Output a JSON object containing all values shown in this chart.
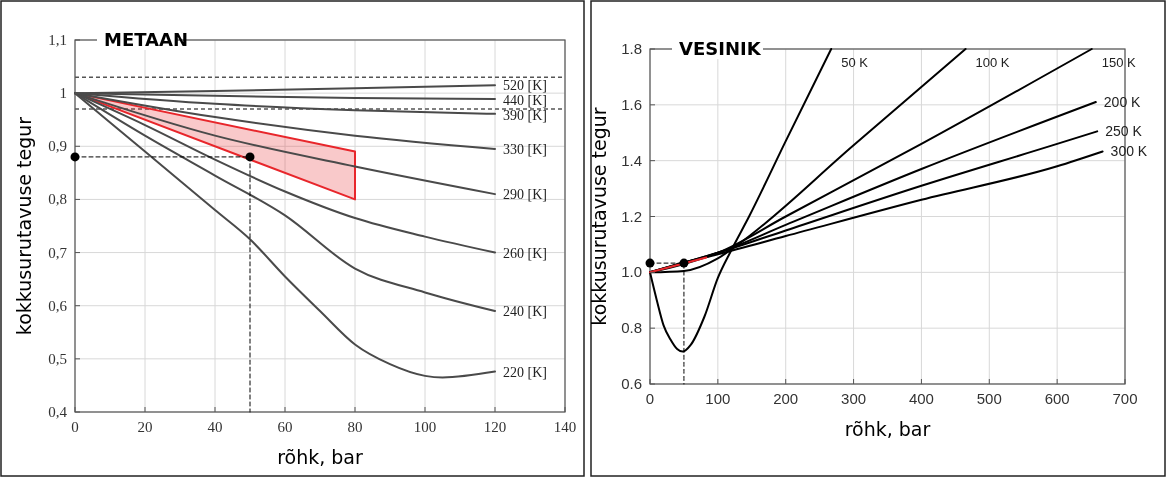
{
  "chart_data": [
    {
      "type": "line",
      "title": "METAAN",
      "xlabel": "rõhk, bar",
      "ylabel": "kokkusurutavuse tegur",
      "xlim": [
        0,
        140
      ],
      "ylim": [
        0.4,
        1.1
      ],
      "xticks": [
        0,
        20,
        40,
        60,
        80,
        100,
        120,
        140
      ],
      "yticks": [
        {
          "value": 0.4,
          "label": "0,4"
        },
        {
          "value": 0.5,
          "label": "0,5"
        },
        {
          "value": 0.6,
          "label": "0,6"
        },
        {
          "value": 0.7,
          "label": "0,7"
        },
        {
          "value": 0.8,
          "label": "0,8"
        },
        {
          "value": 0.9,
          "label": "0,9"
        },
        1,
        {
          "value": 1.1,
          "label": "1,1"
        }
      ],
      "grid": true,
      "ref_lines": [
        {
          "axis": "y",
          "value": 1.03,
          "color": "#555555",
          "line_style": "dashed"
        },
        {
          "axis": "y",
          "value": 0.97,
          "color": "#555555",
          "line_style": "dashed"
        }
      ],
      "series": [
        {
          "type": "area",
          "color": "#e8262b",
          "x": [
            0,
            80,
            80,
            0
          ],
          "values": [
            1,
            0.89,
            0.8,
            1
          ]
        },
        {
          "name": "520 [K]",
          "color": "#4a4a4a",
          "x": [
            0,
            40,
            80,
            120
          ],
          "values": [
            1,
            1.004,
            1.009,
            1.015
          ]
        },
        {
          "name": "440 [K]",
          "color": "#4a4a4a",
          "x": [
            0,
            40,
            80,
            120
          ],
          "values": [
            1,
            0.995,
            0.991,
            0.989
          ]
        },
        {
          "name": "390 [K]",
          "color": "#4a4a4a",
          "x": [
            0,
            40,
            80,
            120
          ],
          "values": [
            1,
            0.98,
            0.968,
            0.961
          ]
        },
        {
          "name": "330 [K]",
          "color": "#4a4a4a",
          "x": [
            0,
            40,
            80,
            120
          ],
          "values": [
            1,
            0.955,
            0.92,
            0.895
          ]
        },
        {
          "name": "290 [K]",
          "color": "#4a4a4a",
          "x": [
            0,
            40,
            80,
            120
          ],
          "values": [
            1,
            0.92,
            0.862,
            0.81
          ]
        },
        {
          "name": "260 [K]",
          "color": "#4a4a4a",
          "x": [
            0,
            20,
            40,
            60,
            80,
            100,
            120
          ],
          "values": [
            1,
            0.94,
            0.875,
            0.815,
            0.765,
            0.73,
            0.7
          ]
        },
        {
          "name": "240 [K]",
          "color": "#4a4a4a",
          "x": [
            0,
            20,
            40,
            60,
            80,
            100,
            120
          ],
          "values": [
            1,
            0.92,
            0.845,
            0.77,
            0.67,
            0.625,
            0.59
          ]
        },
        {
          "name": "220 [K]",
          "color": "#4a4a4a",
          "x": [
            0,
            20,
            40,
            50,
            60,
            70,
            80,
            90,
            100,
            105,
            120
          ],
          "values": [
            1,
            0.89,
            0.78,
            0.725,
            0.655,
            0.59,
            0.527,
            0.49,
            0.468,
            0.465,
            0.476
          ]
        },
        {
          "color": "#000000",
          "line_style": "dashed",
          "x": [
            0,
            50,
            50
          ],
          "values": [
            0.88,
            0.88,
            0.4
          ]
        },
        {
          "type": "scatter",
          "marker": "circle",
          "color": "#000000",
          "x": [
            0,
            50
          ],
          "values": [
            0.88,
            0.88
          ]
        }
      ]
    },
    {
      "type": "line",
      "title": "VESINIK",
      "xlabel": "rõhk, bar",
      "ylabel": "kokkusurutavuse tegur",
      "xlim": [
        0,
        700
      ],
      "ylim": [
        0.6,
        1.8
      ],
      "xticks": [
        0,
        100,
        200,
        300,
        400,
        500,
        600,
        700
      ],
      "yticks": [
        0.6,
        0.8,
        {
          "value": 1,
          "label": "1.0"
        },
        1.2,
        1.4,
        1.6,
        1.8
      ],
      "grid": true,
      "series": [
        {
          "name": "50 K",
          "color": "#000000",
          "x": [
            0,
            10,
            20,
            30,
            40,
            48,
            60,
            80,
            100,
            120,
            146,
            200,
            267
          ],
          "values": [
            1,
            0.9,
            0.81,
            0.76,
            0.725,
            0.716,
            0.74,
            0.84,
            0.98,
            1.08,
            1.2,
            1.47,
            1.8
          ]
        },
        {
          "name": "100 K",
          "color": "#000000",
          "x": [
            0,
            50,
            100,
            130,
            300,
            465
          ],
          "values": [
            1,
            1.005,
            1.05,
            1.1,
            1.455,
            1.8
          ]
        },
        {
          "name": "150 K",
          "color": "#000000",
          "x": [
            0,
            50,
            100,
            200,
            400,
            651
          ],
          "values": [
            1,
            1.03,
            1.07,
            1.2,
            1.46,
            1.8
          ]
        },
        {
          "name": "200 K",
          "color": "#000000",
          "x": [
            0,
            50,
            100,
            200,
            400,
            657
          ],
          "values": [
            1,
            1.035,
            1.07,
            1.17,
            1.37,
            1.61
          ]
        },
        {
          "name": "250 K",
          "color": "#000000",
          "x": [
            0,
            50,
            100,
            200,
            400,
            600,
            659
          ],
          "values": [
            1,
            1.035,
            1.07,
            1.15,
            1.31,
            1.46,
            1.505
          ]
        },
        {
          "name": "300 K",
          "color": "#000000",
          "x": [
            0,
            50,
            100,
            200,
            400,
            600,
            667
          ],
          "values": [
            1,
            1.035,
            1.065,
            1.13,
            1.26,
            1.38,
            1.433
          ]
        },
        {
          "color": "#e8262b",
          "x": [
            0,
            83
          ],
          "values": [
            1,
            1.053
          ]
        },
        {
          "color": "#000000",
          "line_style": "dashed",
          "x": [
            0,
            50,
            50
          ],
          "values": [
            1.033,
            1.033,
            0.6
          ]
        },
        {
          "type": "scatter",
          "marker": "circle",
          "color": "#000000",
          "x": [
            0,
            50
          ],
          "values": [
            1.033,
            1.033
          ]
        }
      ]
    }
  ]
}
